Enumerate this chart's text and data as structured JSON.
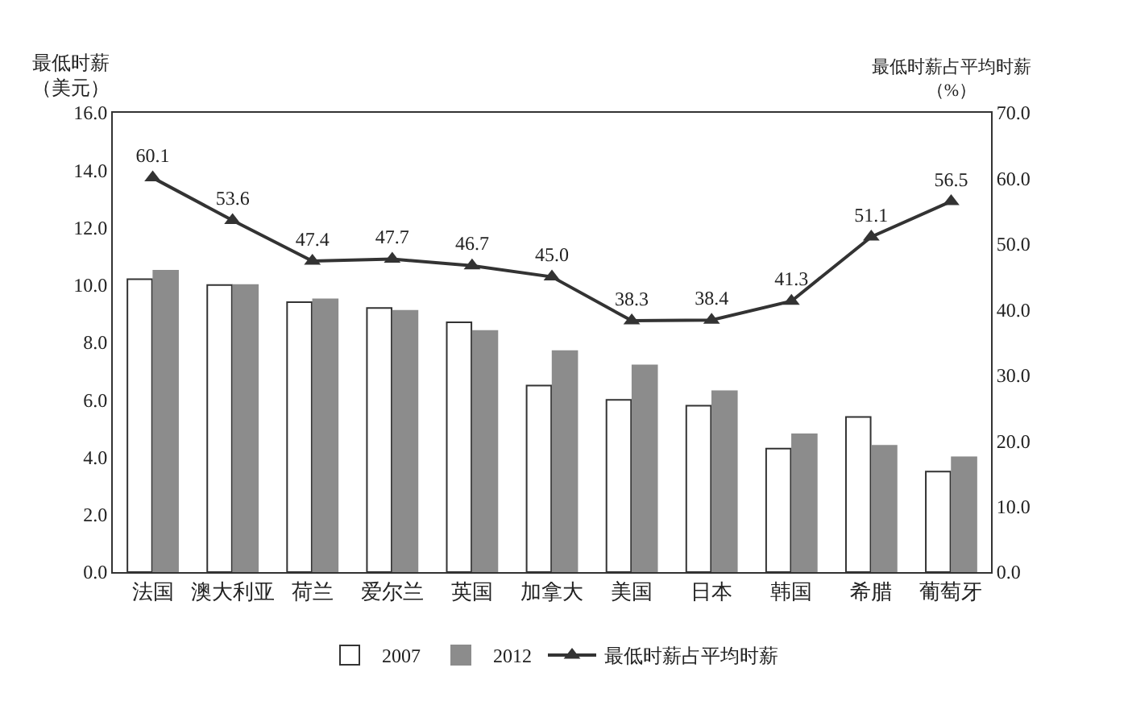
{
  "chart_data": {
    "type": "bar",
    "ylabel": "最低时薪（美元）",
    "y2label": "最低时薪占平均时薪（%）",
    "categories": [
      "法国",
      "澳大利亚",
      "荷兰",
      "爱尔兰",
      "英国",
      "加拿大",
      "美国",
      "日本",
      "韩国",
      "希腊",
      "葡萄牙"
    ],
    "series": [
      {
        "name": "2007",
        "color": "#ffffff",
        "values": [
          10.2,
          10.0,
          9.4,
          9.2,
          8.7,
          6.5,
          6.0,
          5.8,
          4.3,
          5.4,
          3.5
        ]
      },
      {
        "name": "2012",
        "color": "#8c8c8c",
        "values": [
          10.5,
          10.0,
          9.5,
          9.1,
          8.4,
          7.7,
          7.2,
          6.3,
          4.8,
          4.4,
          4.0
        ]
      },
      {
        "name": "最低时薪占平均时薪",
        "type": "line",
        "axis": "y2",
        "color": "#333333",
        "marker": "triangle",
        "values": [
          60.1,
          53.6,
          47.4,
          47.7,
          46.7,
          45.0,
          38.3,
          38.4,
          41.3,
          51.1,
          56.5
        ],
        "value_labels": [
          "60.1",
          "53.6",
          "47.4",
          "47.7",
          "46.7",
          "45.0",
          "38.3",
          "38.4",
          "41.3",
          "51.1",
          "56.5"
        ]
      }
    ],
    "ylim": [
      0,
      16
    ],
    "yticks": [
      {
        "value": 0,
        "label": "0.0"
      },
      {
        "value": 2,
        "label": "2.0"
      },
      {
        "value": 4,
        "label": "4.0"
      },
      {
        "value": 6,
        "label": "6.0"
      },
      {
        "value": 8,
        "label": "8.0"
      },
      {
        "value": 10,
        "label": "10.0"
      },
      {
        "value": 12,
        "label": "12.0"
      },
      {
        "value": 14,
        "label": "14.0"
      },
      {
        "value": 16,
        "label": "16.0"
      }
    ],
    "y2lim": [
      0,
      70
    ],
    "y2ticks": [
      {
        "value": 0,
        "label": "0.0"
      },
      {
        "value": 10,
        "label": "10.0"
      },
      {
        "value": 20,
        "label": "20.0"
      },
      {
        "value": 30,
        "label": "30.0"
      },
      {
        "value": 40,
        "label": "40.0"
      },
      {
        "value": 50,
        "label": "50.0"
      },
      {
        "value": 60,
        "label": "60.0"
      },
      {
        "value": 70,
        "label": "70.0"
      }
    ],
    "legend": "bottom"
  }
}
